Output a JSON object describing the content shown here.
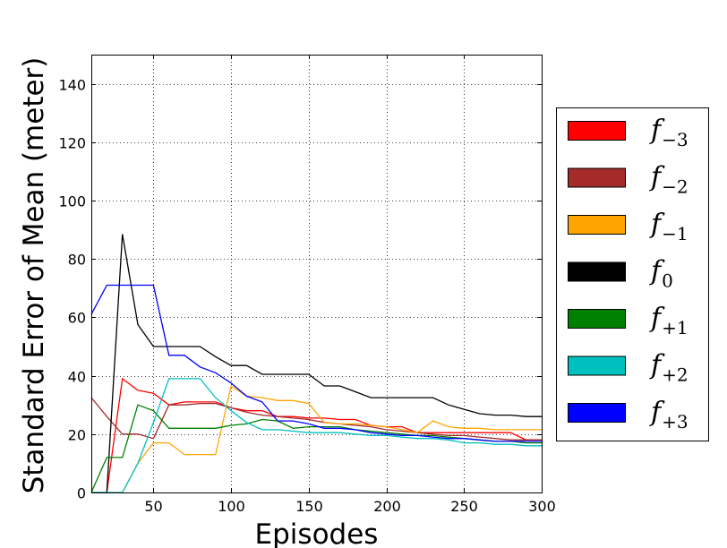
{
  "chart_data": {
    "type": "line",
    "title": "",
    "xlabel": "Episodes",
    "ylabel": "Standard Error of Mean (meter)",
    "xlim": [
      10,
      300
    ],
    "ylim": [
      0,
      150
    ],
    "xticks": [
      50,
      100,
      150,
      200,
      250,
      300
    ],
    "yticks": [
      0,
      20,
      40,
      60,
      80,
      100,
      120,
      140
    ],
    "xtick_labels": [
      "50",
      "100",
      "150",
      "200",
      "250",
      "300"
    ],
    "ytick_labels": [
      "0",
      "20",
      "40",
      "60",
      "80",
      "100",
      "120",
      "140"
    ],
    "grid": true,
    "legend_position": "right outside",
    "x": [
      10,
      20,
      30,
      40,
      50,
      60,
      70,
      80,
      90,
      100,
      110,
      120,
      130,
      140,
      150,
      160,
      170,
      180,
      190,
      200,
      210,
      220,
      230,
      240,
      250,
      260,
      270,
      280,
      290,
      300
    ],
    "series": [
      {
        "name": "f",
        "sub": "−3",
        "color": "#ff0000",
        "values": [
          0,
          0,
          39,
          35,
          34,
          30,
          31,
          31,
          31,
          29,
          28,
          28,
          26,
          26,
          25.5,
          25.5,
          25,
          25,
          23,
          22.5,
          22.5,
          20.5,
          20.5,
          20.5,
          20.5,
          20.5,
          20.5,
          20.5,
          18,
          18
        ]
      },
      {
        "name": "f",
        "sub": "−2",
        "color": "#a52a2a",
        "values": [
          32.5,
          26,
          20,
          20,
          18.5,
          30,
          30,
          30.5,
          30.5,
          29,
          27.5,
          26.5,
          26,
          25.5,
          25,
          24,
          23.5,
          23,
          22.5,
          21.5,
          21,
          20.5,
          20,
          19.5,
          19.5,
          19,
          18.5,
          18,
          18,
          18
        ]
      },
      {
        "name": "f",
        "sub": "−1",
        "color": "#ffa500",
        "values": [
          0,
          0,
          0,
          10,
          17,
          17,
          13,
          13,
          13,
          36.5,
          33,
          32.5,
          31.5,
          31.5,
          30.5,
          24,
          23.5,
          23.5,
          23,
          22.5,
          21.5,
          20.5,
          24.5,
          22.5,
          22,
          22,
          21.5,
          21.5,
          21.5,
          21.5
        ]
      },
      {
        "name": "f",
        "sub": "0",
        "color": "#000000",
        "values": [
          0,
          0,
          88.5,
          57.5,
          50,
          50,
          50,
          50,
          46.5,
          43.5,
          43.5,
          40.5,
          40.5,
          40.5,
          40.5,
          36.5,
          36.5,
          34.5,
          32.5,
          32.5,
          32.5,
          32.5,
          32.5,
          30,
          28.5,
          27,
          26.5,
          26.5,
          26,
          26
        ]
      },
      {
        "name": "f",
        "sub": "+1",
        "color": "#008000",
        "values": [
          0,
          12,
          12,
          30,
          28,
          22,
          22,
          22,
          22,
          23,
          23.5,
          25,
          24.5,
          22,
          22.5,
          22.5,
          22.5,
          21.5,
          21,
          20.5,
          20,
          19.5,
          19.5,
          19,
          18.5,
          18,
          17.5,
          17.5,
          17,
          17
        ]
      },
      {
        "name": "f",
        "sub": "+2",
        "color": "#00bfbf",
        "values": [
          0,
          0,
          0,
          10,
          24,
          39,
          39,
          39,
          32.5,
          28,
          24,
          21.5,
          21.5,
          21,
          20.5,
          20.5,
          20.5,
          20,
          19.5,
          19.5,
          19,
          18.5,
          18.5,
          18,
          17,
          17,
          16.5,
          16.5,
          16,
          16
        ]
      },
      {
        "name": "f",
        "sub": "+3",
        "color": "#0000ff",
        "values": [
          61,
          71,
          71,
          71,
          71,
          47,
          47,
          43,
          41,
          37.5,
          33,
          31,
          24.5,
          24.5,
          23.5,
          22,
          22,
          21.5,
          20.5,
          20,
          19.5,
          19.5,
          19,
          18.5,
          18.5,
          18,
          17.5,
          17.5,
          17.5,
          17.5
        ]
      }
    ]
  }
}
